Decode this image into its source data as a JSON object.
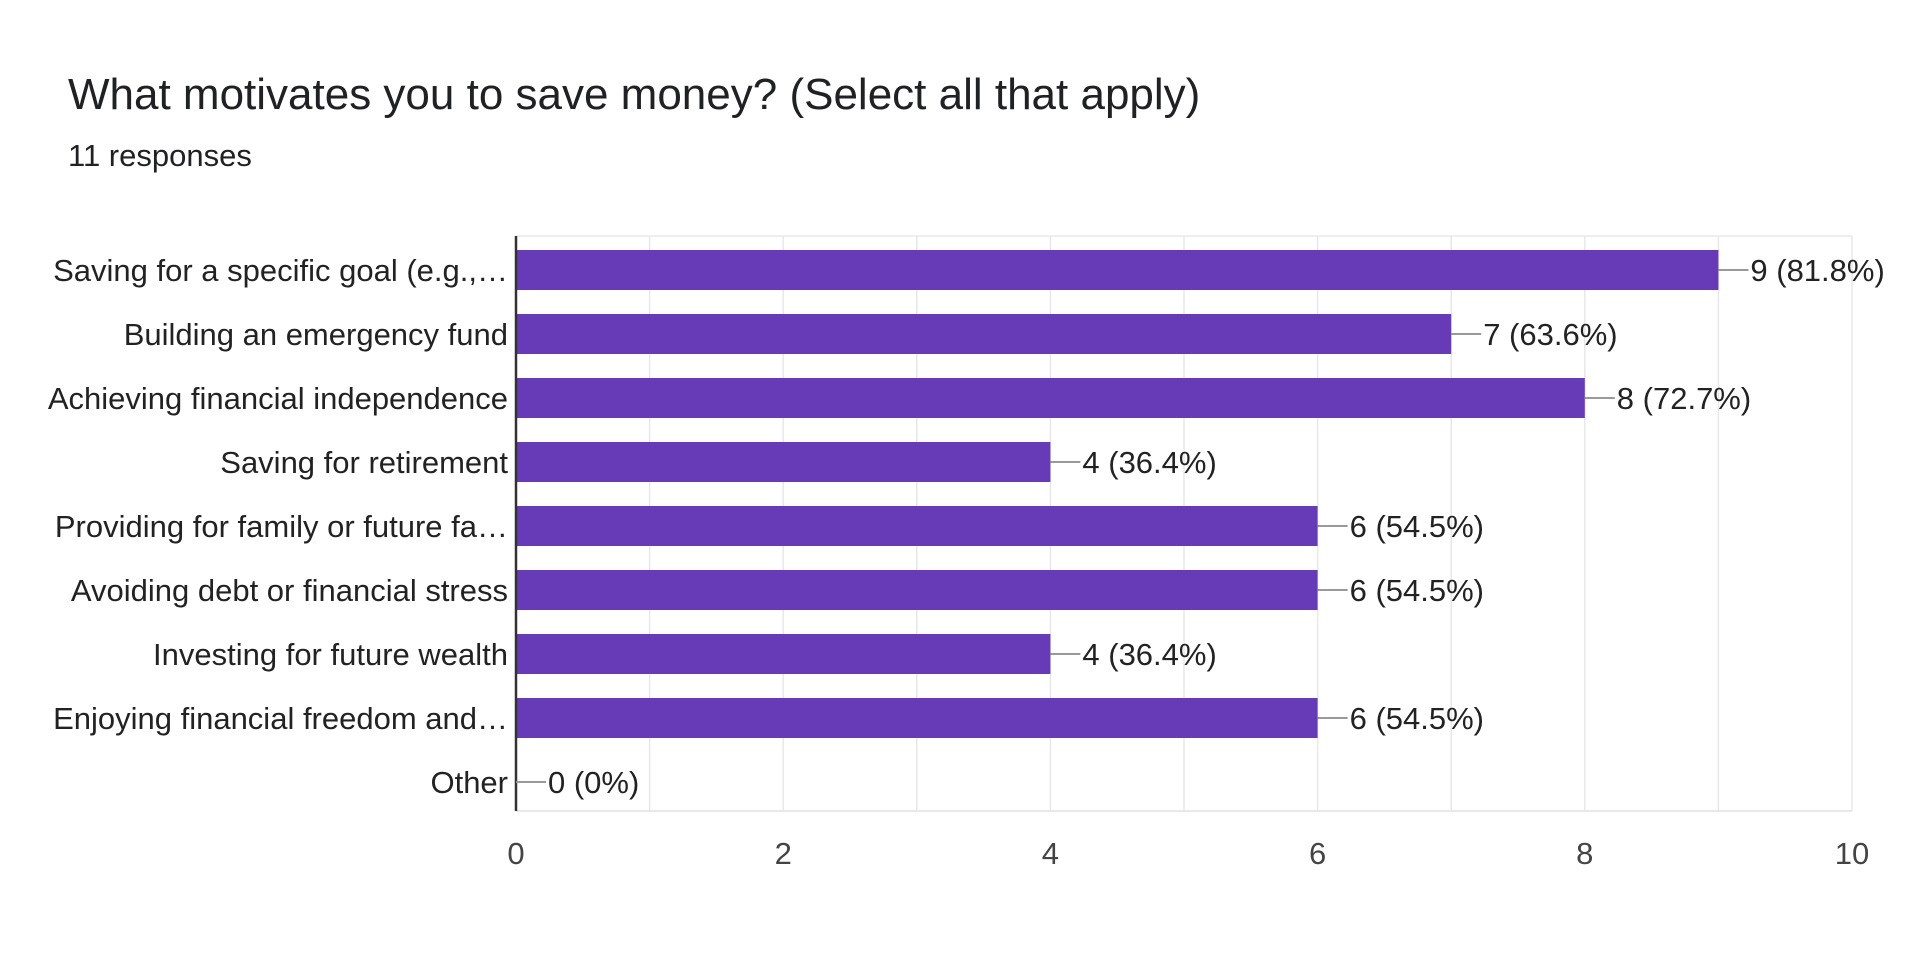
{
  "form": {
    "question": "What motivates you to save money? (Select all that apply)",
    "responses": "11 responses"
  },
  "colors": {
    "bar": "#673ab7",
    "grid": "#e8e8e8",
    "axis": "#333333",
    "leader": "#999999"
  },
  "chart_data": {
    "type": "bar",
    "orientation": "horizontal",
    "categories": [
      "Saving for a specific goal (e.g.,…",
      "Building an emergency fund",
      "Achieving financial independence",
      "Saving for retirement",
      "Providing for family or future fa…",
      "Avoiding debt or financial stress",
      "Investing for future wealth",
      "Enjoying financial freedom and…",
      "Other"
    ],
    "values": [
      9,
      7,
      8,
      4,
      6,
      6,
      4,
      6,
      0
    ],
    "value_labels": [
      "9 (81.8%)",
      "7 (63.6%)",
      "8 (72.7%)",
      "4 (36.4%)",
      "6 (54.5%)",
      "6 (54.5%)",
      "4 (36.4%)",
      "6 (54.5%)",
      "0 (0%)"
    ],
    "xlim": [
      0,
      10
    ],
    "xticks": [
      0,
      2,
      4,
      6,
      8,
      10
    ],
    "grid": true,
    "title": "What motivates you to save money? (Select all that apply)",
    "xlabel": "",
    "ylabel": ""
  }
}
